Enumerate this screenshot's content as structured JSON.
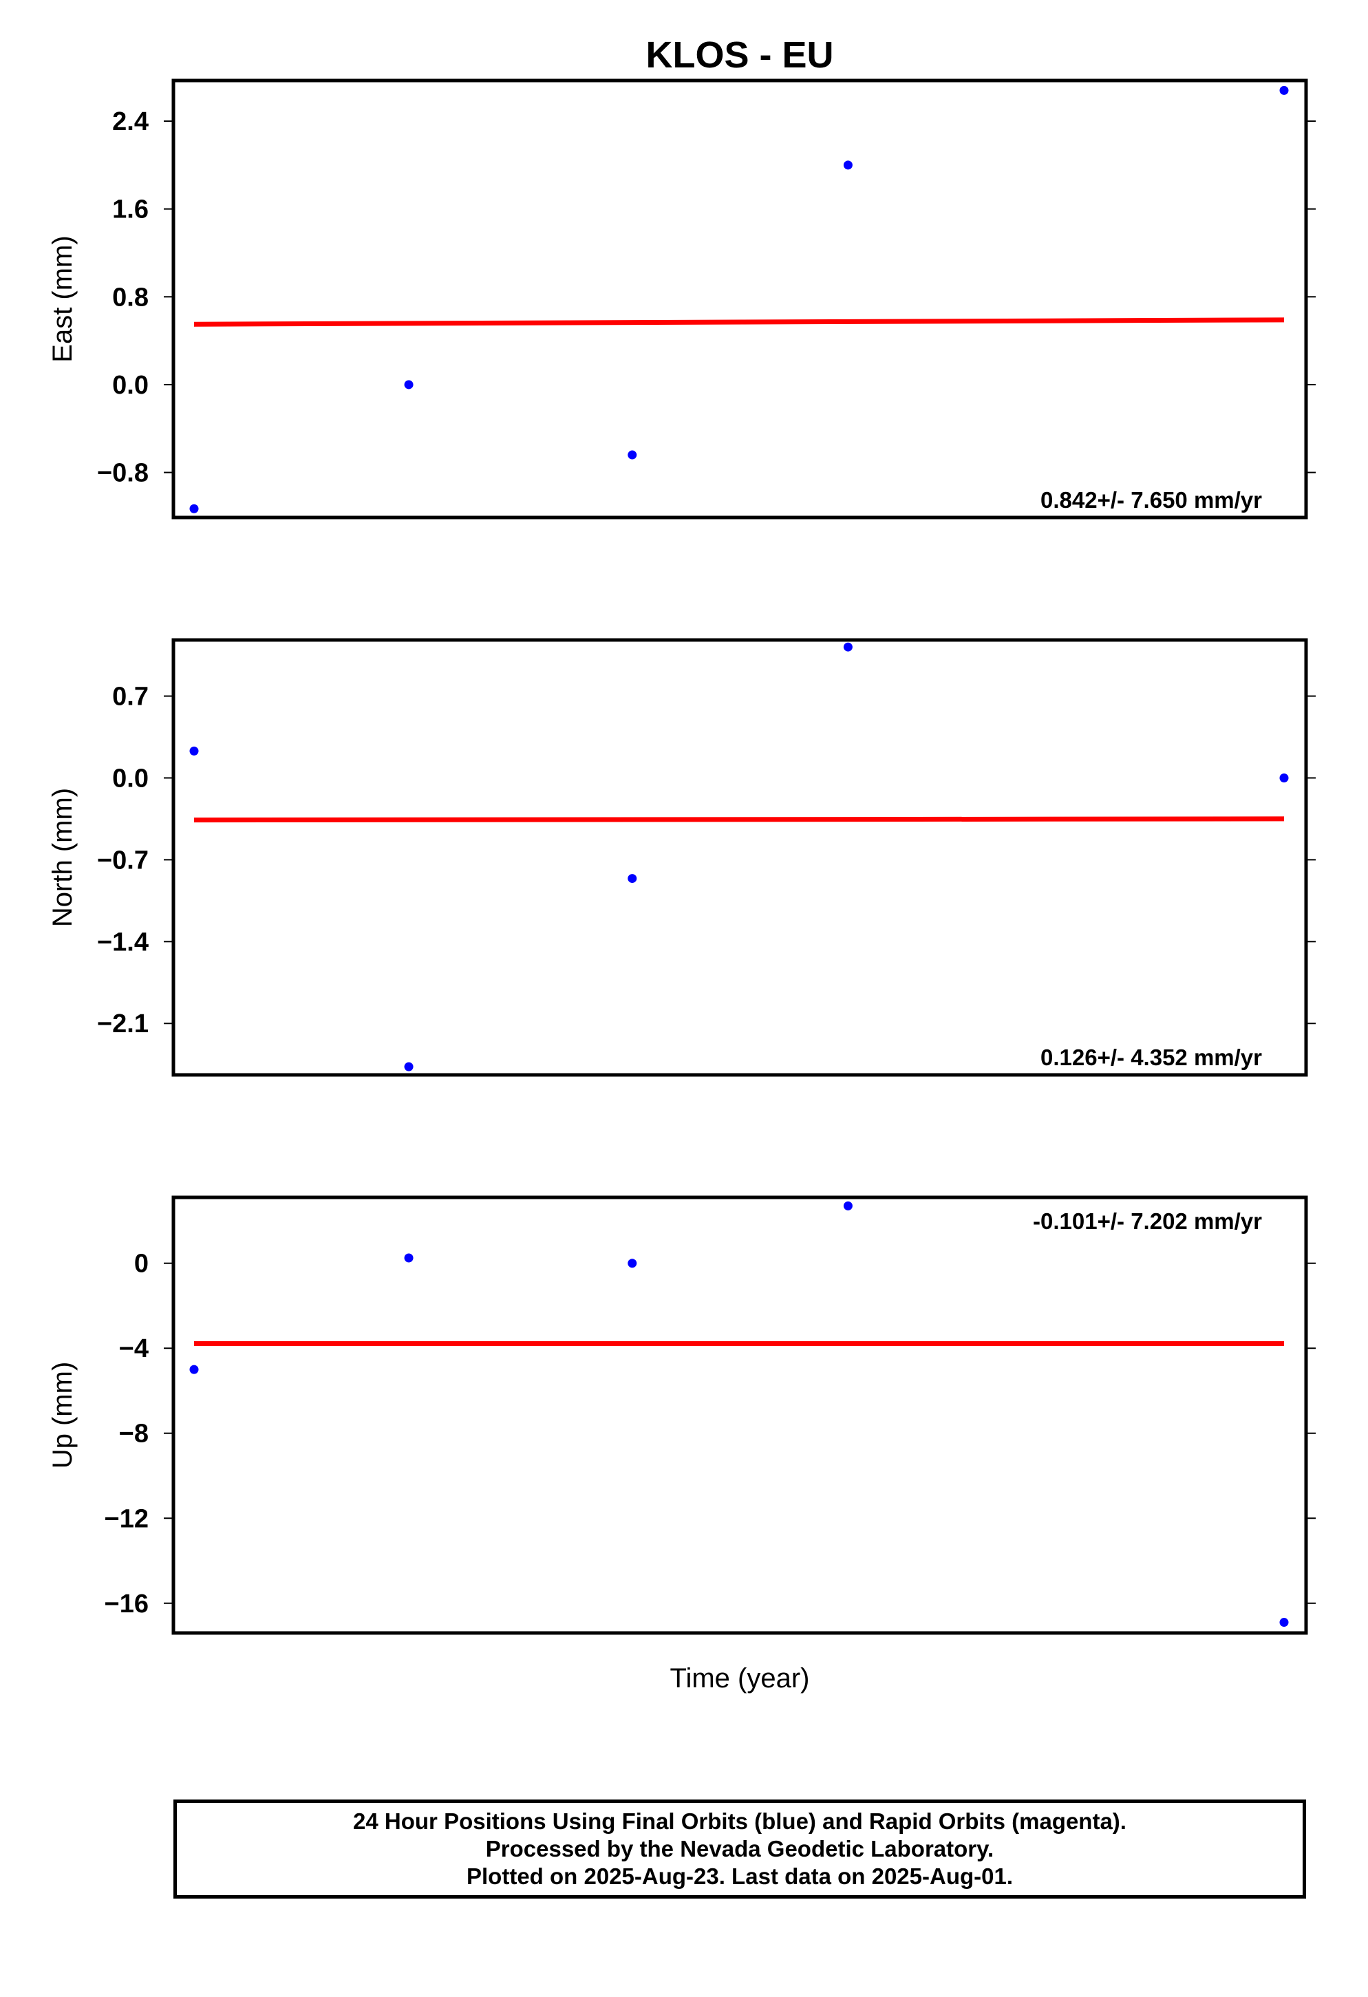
{
  "title": "KLOS - EU",
  "xlabel": "Time (year)",
  "footer": {
    "line1": "24 Hour Positions Using Final Orbits (blue) and Rapid Orbits (magenta).",
    "line2": "Processed by the Nevada Geodetic Laboratory.",
    "line3": "Plotted on 2025-Aug-23. Last data on 2025-Aug-01."
  },
  "colors": {
    "points": "#0000ff",
    "trend": "#ff0000",
    "frame": "#000000"
  },
  "chart_data": [
    {
      "type": "scatter",
      "ylabel": "East (mm)",
      "ylim": [
        -1.21,
        2.77
      ],
      "yticks": [
        2.4,
        1.6,
        0.8,
        0.0,
        -0.8
      ],
      "ytick_labels": [
        "2.4",
        "1.6",
        "0.8",
        "0.0",
        "−0.8"
      ],
      "rate_label": "0.842+/- 7.650 mm/yr",
      "rate_position": "bottom-right",
      "x": [
        0.0,
        0.197,
        0.402,
        0.6,
        1.0
      ],
      "y": [
        -1.13,
        0.0,
        -0.64,
        2.0,
        2.68
      ],
      "trend": {
        "x": [
          0.0,
          1.0
        ],
        "y": [
          0.55,
          0.59
        ]
      }
    },
    {
      "type": "scatter",
      "ylabel": "North (mm)",
      "ylim": [
        -2.54,
        1.18
      ],
      "yticks": [
        0.7,
        0.0,
        -0.7,
        -1.4,
        -2.1
      ],
      "ytick_labels": [
        "0.7",
        "0.0",
        "−0.7",
        "−1.4",
        "−2.1"
      ],
      "rate_label": "0.126+/- 4.352 mm/yr",
      "rate_position": "bottom-right",
      "x": [
        0.0,
        0.197,
        0.402,
        0.6,
        1.0
      ],
      "y": [
        0.23,
        -2.47,
        -0.86,
        1.12,
        0.0
      ],
      "trend": {
        "x": [
          0.0,
          1.0
        ],
        "y": [
          -0.36,
          -0.35
        ]
      }
    },
    {
      "type": "scatter",
      "ylabel": "Up (mm)",
      "ylim": [
        -17.4,
        3.1
      ],
      "yticks": [
        0,
        -4,
        -8,
        -12,
        -16
      ],
      "ytick_labels": [
        "0",
        "−4",
        "−8",
        "−12",
        "−16"
      ],
      "rate_label": "-0.101+/- 7.202 mm/yr",
      "rate_position": "top-right",
      "x": [
        0.0,
        0.197,
        0.402,
        0.6,
        1.0
      ],
      "y": [
        -5.0,
        0.25,
        0.0,
        2.7,
        -16.9
      ],
      "trend": {
        "x": [
          0.0,
          1.0
        ],
        "y": [
          -3.78,
          -3.78
        ]
      }
    }
  ]
}
